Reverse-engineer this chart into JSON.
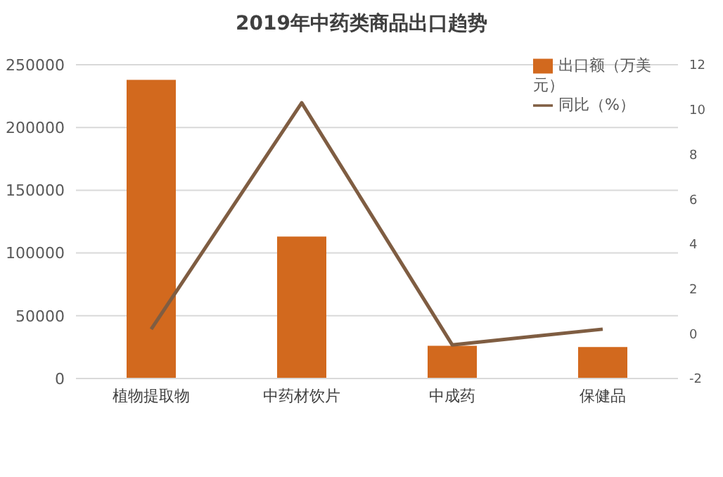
{
  "chart_data": {
    "type": "bar",
    "title": "2019年中药类商品出口趋势",
    "categories": [
      "植物提取物",
      "中药材饮片",
      "中成药",
      "保健品"
    ],
    "series": [
      {
        "name": "出口额（万美元）",
        "color": "#d2691e",
        "values": [
          238000,
          113000,
          26000,
          25000
        ]
      },
      {
        "name": "同比（%）",
        "type": "line",
        "axis": "y2",
        "color": "#7f5d42",
        "values": [
          0.2,
          10.3,
          -0.5,
          0.2
        ]
      }
    ],
    "ylim": [
      0,
      250000
    ],
    "yticks": [
      0,
      50000,
      100000,
      150000,
      200000,
      250000
    ],
    "y2lim": [
      -2,
      12
    ],
    "y2ticks": [
      -2,
      0,
      2,
      4,
      6,
      8,
      10,
      12
    ],
    "grid": "y",
    "legend": "top right",
    "marker": "none"
  }
}
